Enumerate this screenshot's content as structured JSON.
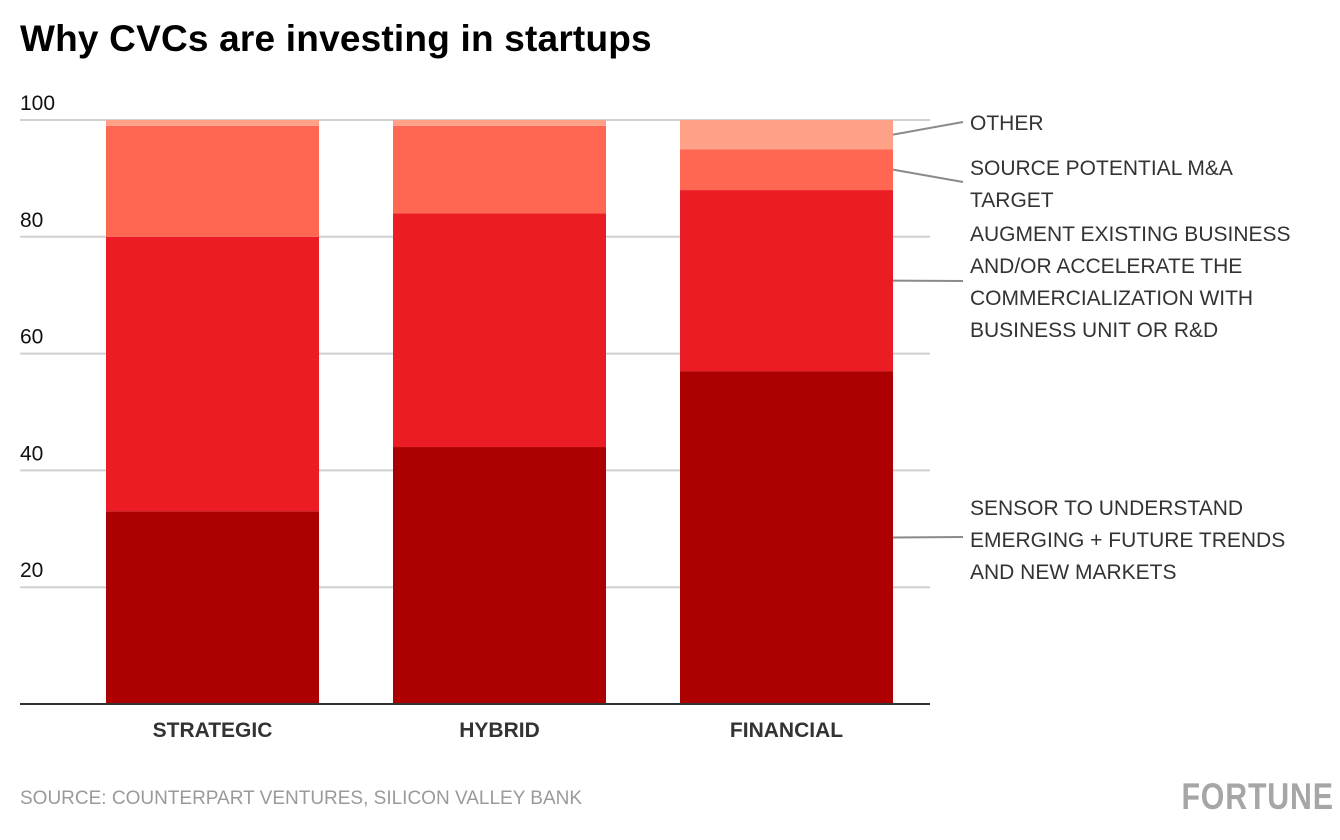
{
  "chart_data": {
    "type": "bar",
    "stacked": true,
    "title": "Why CVCs are investing in startups",
    "xlabel": "",
    "ylabel": "",
    "ylim": [
      0,
      100
    ],
    "yticks": [
      20,
      40,
      60,
      80,
      100
    ],
    "grid": true,
    "legend_position": "right",
    "categories": [
      "STRATEGIC",
      "HYBRID",
      "FINANCIAL"
    ],
    "series": [
      {
        "name": "SENSOR TO UNDERSTAND EMERGING + FUTURE TRENDS AND NEW MARKETS",
        "label_lines": [
          "SENSOR TO UNDERSTAND",
          "EMERGING + FUTURE TRENDS",
          "AND NEW MARKETS"
        ],
        "color": "#ad0000",
        "values": [
          33,
          44,
          57
        ]
      },
      {
        "name": "AUGMENT EXISTING BUSINESS AND/OR ACCELERATE THE COMMERCIALIZATION WITH BUSINESS UNIT OR R&D",
        "label_lines": [
          "AUGMENT EXISTING BUSINESS",
          "AND/OR ACCELERATE THE",
          "COMMERCIALIZATION WITH",
          "BUSINESS UNIT OR R&D"
        ],
        "color": "#ec1c24",
        "values": [
          47,
          40,
          31
        ]
      },
      {
        "name": "SOURCE POTENTIAL M&A TARGET",
        "label_lines": [
          "SOURCE POTENTIAL M&A",
          "TARGET"
        ],
        "color": "#ff6753",
        "values": [
          19,
          15,
          7
        ]
      },
      {
        "name": "OTHER",
        "label_lines": [
          "OTHER"
        ],
        "color": "#ffa187",
        "values": [
          1,
          1,
          5
        ]
      }
    ]
  },
  "footer": {
    "source": "SOURCE: COUNTERPART VENTURES, SILICON VALLEY BANK",
    "logo": "FORTUNE"
  }
}
